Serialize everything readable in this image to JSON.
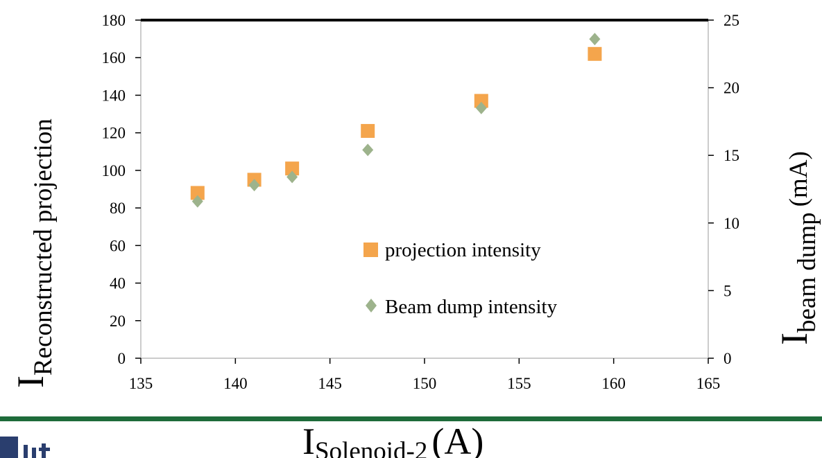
{
  "chart_data": {
    "type": "scatter",
    "xlabel": {
      "main": "I",
      "sub": "Solenoid-2",
      "unit": "(A)"
    },
    "ylabel_left": {
      "main": "I",
      "sub": "Reconstructed projection"
    },
    "ylabel_right": {
      "main": "I",
      "sub": "beam dump",
      "unit": "(mA)"
    },
    "x_ticks": [
      135,
      140,
      145,
      150,
      155,
      160,
      165
    ],
    "xlim": [
      135,
      165
    ],
    "y_left_ticks": [
      0,
      20,
      40,
      60,
      80,
      100,
      120,
      140,
      160,
      180
    ],
    "ylim_left": [
      0,
      180
    ],
    "y_right_ticks": [
      0,
      5,
      10,
      15,
      20,
      25
    ],
    "ylim_right": [
      0,
      25
    ],
    "grid": false,
    "legend_position": "lower-right",
    "series": [
      {
        "name": "projection intensity",
        "axis": "left",
        "marker": "square",
        "color": "#f4a54c",
        "x": [
          138,
          141,
          143,
          147,
          153,
          159
        ],
        "y": [
          88,
          95,
          101,
          121,
          137,
          162
        ]
      },
      {
        "name": "Beam dump intensity",
        "axis": "right",
        "marker": "diamond",
        "color": "#9db38c",
        "x": [
          138,
          141,
          143,
          147,
          153,
          159
        ],
        "y": [
          11.6,
          12.8,
          13.4,
          15.4,
          18.5,
          23.6
        ]
      }
    ]
  },
  "colors": {
    "frame": "#000000",
    "rule": "#1e6b3a",
    "logo": "#2a3e6e"
  }
}
